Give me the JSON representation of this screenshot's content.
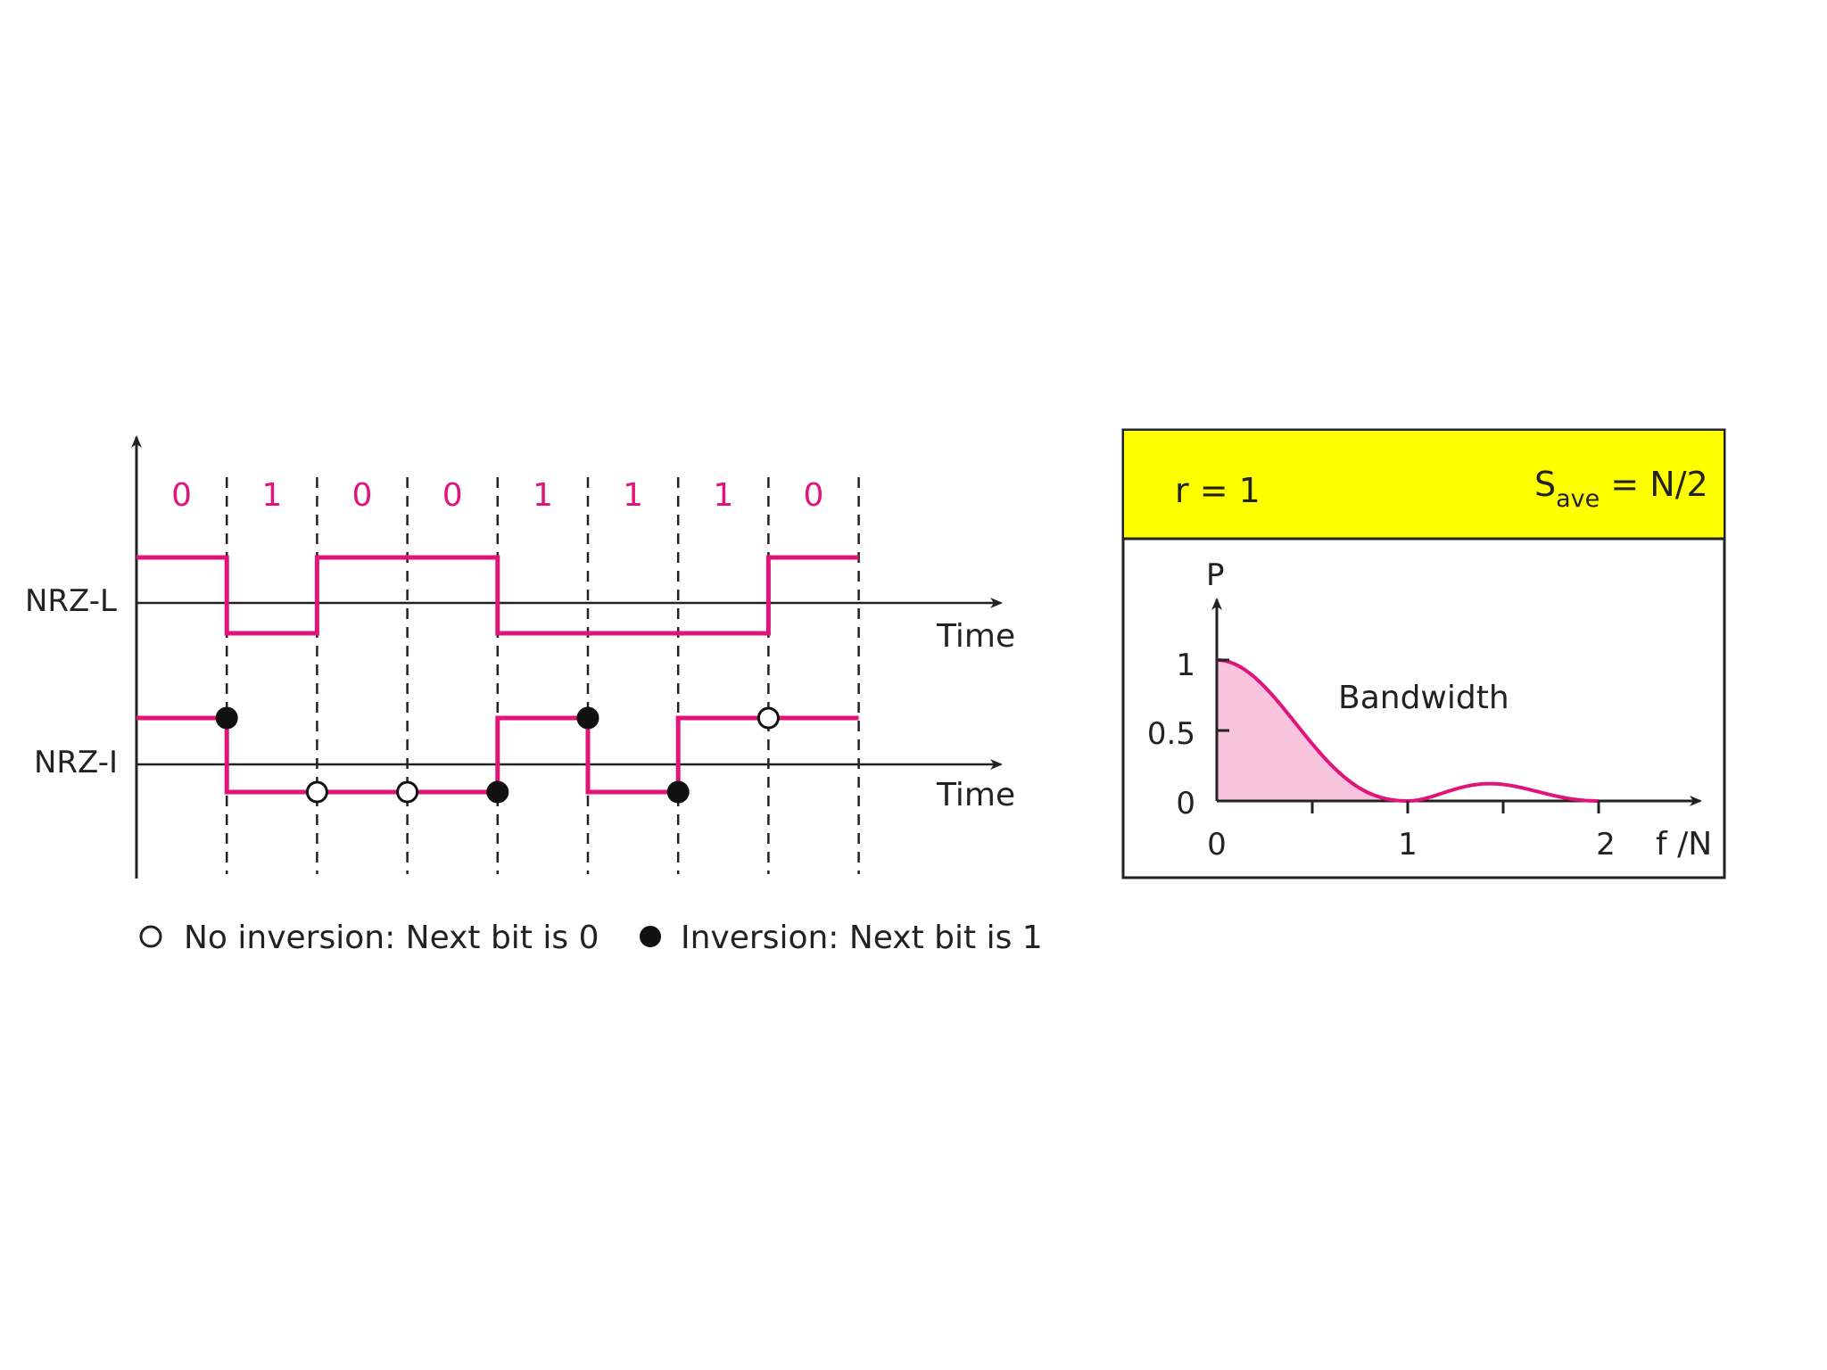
{
  "bits": [
    "0",
    "1",
    "0",
    "0",
    "1",
    "1",
    "1",
    "0"
  ],
  "labels": {
    "nrz_l": "NRZ-L",
    "nrz_i": "NRZ-I",
    "time_1": "Time",
    "time_2": "Time"
  },
  "nrz_l_levels": [
    1,
    0,
    1,
    1,
    0,
    0,
    0,
    1
  ],
  "nrz_i_levels": [
    1,
    0,
    0,
    0,
    1,
    0,
    1,
    1
  ],
  "nrz_i_markers": [
    {
      "boundary": 1,
      "type": "filled"
    },
    {
      "boundary": 2,
      "type": "hollow"
    },
    {
      "boundary": 3,
      "type": "hollow"
    },
    {
      "boundary": 4,
      "type": "filled"
    },
    {
      "boundary": 5,
      "type": "filled"
    },
    {
      "boundary": 6,
      "type": "filled"
    },
    {
      "boundary": 7,
      "type": "hollow"
    }
  ],
  "legend": {
    "hollow": "No inversion: Next bit is 0",
    "filled": "Inversion: Next bit is 1"
  },
  "spectrum": {
    "r_label": "r = 1",
    "save_main": "S",
    "save_sub": "ave",
    "save_rest": " = N/2",
    "p_label": "P",
    "bandwidth_label": "Bandwidth",
    "x_axis_label": "f /N",
    "y_ticks": [
      "1",
      "0.5",
      "0"
    ],
    "x_ticks": [
      "0",
      "1",
      "2"
    ]
  },
  "colors": {
    "signal": "#e0147a",
    "fill": "#f7c3dd",
    "header_bg": "#ffff00",
    "axis": "#222222"
  }
}
